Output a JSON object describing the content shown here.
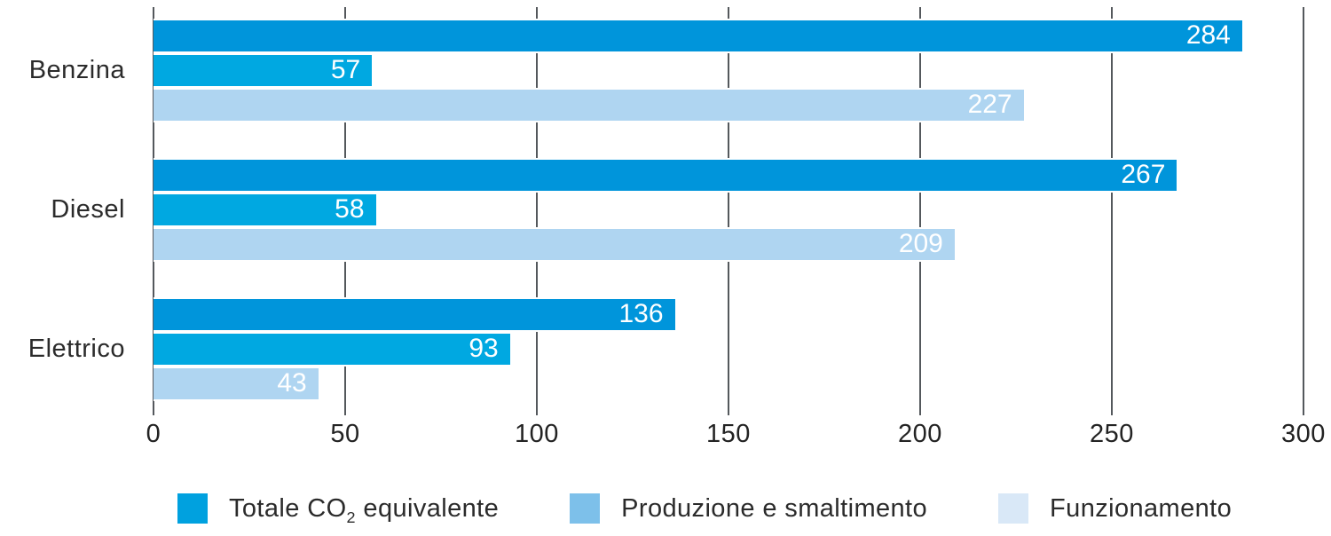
{
  "chart_data": {
    "type": "bar",
    "orientation": "horizontal",
    "categories": [
      "Benzina",
      "Diesel",
      "Elettrico"
    ],
    "series": [
      {
        "name": "Totale CO2 equivalente",
        "values": [
          284,
          267,
          136
        ],
        "bar_color": "#0095DB",
        "legend_color": "#00A1DF",
        "label_parts": {
          "prefix": "Totale CO",
          "sub": "2",
          "suffix": " equivalente"
        }
      },
      {
        "name": "Produzione e smaltimento",
        "values": [
          57,
          58,
          93
        ],
        "bar_color": "#00A8E1",
        "legend_color": "#7DC0EA",
        "label_parts": {
          "prefix": "Produzione e smaltimento",
          "sub": "",
          "suffix": ""
        }
      },
      {
        "name": "Funzionamento",
        "values": [
          227,
          209,
          43
        ],
        "bar_color": "#AFD5F1",
        "legend_color": "#D9E8F7",
        "label_parts": {
          "prefix": "Funzionamento",
          "sub": "",
          "suffix": ""
        }
      }
    ],
    "xlim": [
      0,
      300
    ],
    "xticks": [
      0,
      50,
      100,
      150,
      200,
      250,
      300
    ],
    "grid": true,
    "legend_position": "bottom",
    "value_labels": "inside-end",
    "title": "",
    "xlabel": "",
    "ylabel": "",
    "colors": {
      "grid": "#54585C",
      "value_label": "#FFFFFF",
      "text": "#2B2B2B"
    }
  }
}
